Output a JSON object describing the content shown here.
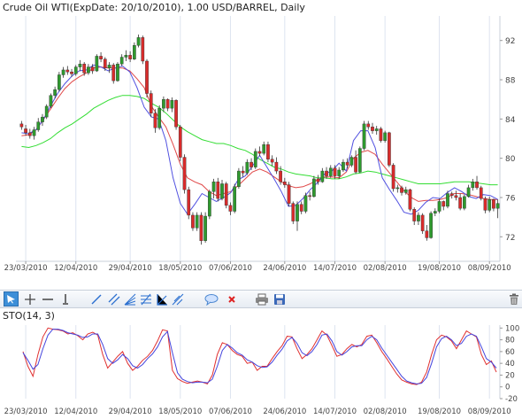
{
  "header": {
    "title": "Crude Oil WTI(ExpDate: 20/10/2010), 1.00 USD/BARREL, Daily"
  },
  "indicator": {
    "title": "STO(14, 3)"
  },
  "toolbar": {
    "tools": [
      "pointer-tool",
      "crosshair-tool",
      "horizontal-line-tool",
      "vertical-line-tool",
      "trend-line-tool",
      "parallel-channel-tool",
      "fibonacci-fan-tool",
      "fibonacci-retracement-tool",
      "gann-fan-tool",
      "pitchfork-tool",
      "comment-tool",
      "delete-tool",
      "print-tool",
      "save-tool",
      "clear-all-tool"
    ]
  },
  "colors": {
    "up": "#2e9a2e",
    "down": "#d92b2b",
    "ma_fast": "#5050e0",
    "ma_medium": "#e04848",
    "ma_slow": "#33dd33",
    "sto_k": "#e03030",
    "sto_d": "#4444dd",
    "grid": "#dde4f0"
  },
  "chart_data": [
    {
      "type": "candlestick",
      "title": "Crude Oil WTI(ExpDate: 20/10/2010), 1.00 USD/BARREL, Daily",
      "x_tick_labels": [
        "23/03/2010",
        "12/04/2010",
        "29/04/2010",
        "18/05/2010",
        "07/06/2010",
        "24/06/2010",
        "14/07/2010",
        "02/08/2010",
        "19/08/2010",
        "08/09/2010"
      ],
      "y_ticks": [
        72,
        76,
        80,
        84,
        88,
        92
      ],
      "ylim": [
        69.5,
        94.5
      ],
      "candles": [
        [
          83.5,
          83.8,
          82.9,
          83.2
        ],
        [
          83.0,
          83.4,
          82.3,
          82.6
        ],
        [
          82.6,
          83.0,
          82.0,
          82.3
        ],
        [
          82.3,
          83.2,
          81.9,
          82.9
        ],
        [
          82.9,
          84.1,
          82.7,
          83.7
        ],
        [
          83.7,
          84.5,
          83.3,
          84.2
        ],
        [
          84.2,
          85.5,
          84.0,
          85.3
        ],
        [
          85.3,
          86.6,
          85.1,
          86.4
        ],
        [
          86.4,
          87.3,
          86.1,
          87.0
        ],
        [
          87.0,
          88.8,
          86.8,
          88.5
        ],
        [
          88.5,
          89.3,
          88.2,
          89.0
        ],
        [
          89.0,
          89.4,
          88.5,
          88.8
        ],
        [
          88.8,
          89.1,
          88.3,
          88.6
        ],
        [
          88.6,
          89.5,
          88.4,
          89.3
        ],
        [
          89.3,
          90.0,
          88.9,
          89.6
        ],
        [
          89.6,
          89.8,
          88.4,
          88.7
        ],
        [
          88.7,
          89.6,
          88.5,
          89.3
        ],
        [
          89.3,
          89.6,
          88.6,
          88.9
        ],
        [
          88.9,
          90.6,
          88.8,
          90.4
        ],
        [
          90.4,
          90.8,
          89.8,
          90.1
        ],
        [
          90.1,
          90.3,
          88.9,
          89.2
        ],
        [
          89.2,
          89.8,
          88.7,
          89.5
        ],
        [
          89.5,
          89.7,
          87.6,
          87.9
        ],
        [
          87.9,
          89.8,
          87.8,
          89.6
        ],
        [
          89.6,
          90.6,
          89.4,
          90.3
        ],
        [
          90.3,
          91.0,
          89.9,
          90.5
        ],
        [
          90.5,
          90.9,
          89.8,
          90.1
        ],
        [
          90.1,
          91.8,
          90.0,
          91.5
        ],
        [
          91.5,
          92.6,
          91.3,
          92.3
        ],
        [
          92.3,
          92.5,
          89.6,
          89.9
        ],
        [
          89.9,
          90.1,
          86.2,
          86.6
        ],
        [
          86.6,
          86.9,
          84.2,
          84.6
        ],
        [
          84.6,
          85.0,
          82.6,
          83.1
        ],
        [
          83.1,
          85.4,
          82.9,
          85.1
        ],
        [
          85.1,
          86.3,
          84.7,
          86.0
        ],
        [
          86.0,
          86.1,
          84.8,
          85.1
        ],
        [
          85.1,
          86.2,
          84.7,
          85.9
        ],
        [
          85.9,
          86.0,
          82.9,
          83.2
        ],
        [
          83.2,
          83.4,
          79.7,
          80.1
        ],
        [
          80.1,
          80.4,
          76.4,
          76.8
        ],
        [
          76.8,
          77.1,
          73.8,
          74.2
        ],
        [
          74.2,
          74.5,
          72.6,
          72.9
        ],
        [
          72.9,
          74.5,
          72.6,
          74.2
        ],
        [
          74.2,
          74.5,
          71.2,
          71.6
        ],
        [
          71.6,
          74.5,
          71.4,
          74.1
        ],
        [
          74.1,
          76.8,
          73.8,
          76.6
        ],
        [
          76.6,
          77.9,
          75.9,
          77.6
        ],
        [
          77.6,
          78.0,
          75.6,
          75.9
        ],
        [
          75.9,
          77.8,
          75.7,
          77.4
        ],
        [
          77.4,
          77.6,
          74.9,
          75.2
        ],
        [
          75.2,
          75.5,
          74.2,
          74.6
        ],
        [
          74.6,
          77.4,
          74.4,
          77.1
        ],
        [
          77.1,
          79.0,
          76.9,
          78.7
        ],
        [
          78.7,
          79.2,
          78.1,
          78.5
        ],
        [
          78.5,
          79.9,
          78.3,
          79.6
        ],
        [
          79.6,
          80.0,
          78.8,
          79.1
        ],
        [
          79.1,
          81.0,
          78.9,
          80.7
        ],
        [
          80.7,
          81.2,
          80.2,
          80.5
        ],
        [
          80.5,
          81.7,
          80.3,
          81.4
        ],
        [
          81.4,
          81.7,
          79.6,
          79.9
        ],
        [
          79.9,
          80.3,
          79.2,
          79.6
        ],
        [
          79.6,
          80.1,
          78.4,
          78.7
        ],
        [
          78.7,
          79.2,
          77.3,
          77.6
        ],
        [
          77.6,
          78.0,
          77.0,
          77.3
        ],
        [
          77.3,
          77.6,
          75.1,
          75.4
        ],
        [
          75.4,
          75.6,
          73.3,
          73.6
        ],
        [
          73.6,
          75.6,
          72.6,
          75.3
        ],
        [
          75.3,
          75.6,
          74.3,
          74.6
        ],
        [
          74.6,
          76.5,
          74.4,
          76.2
        ],
        [
          76.2,
          76.6,
          75.7,
          76.1
        ],
        [
          76.1,
          78.2,
          76.0,
          77.9
        ],
        [
          77.9,
          78.3,
          77.3,
          77.6
        ],
        [
          77.6,
          79.0,
          77.5,
          78.7
        ],
        [
          78.7,
          79.1,
          77.9,
          78.2
        ],
        [
          78.2,
          79.3,
          78.0,
          79.0
        ],
        [
          79.0,
          79.3,
          77.9,
          78.2
        ],
        [
          78.2,
          79.1,
          77.9,
          78.8
        ],
        [
          78.8,
          79.9,
          78.6,
          79.6
        ],
        [
          79.6,
          80.0,
          79.0,
          79.3
        ],
        [
          79.3,
          80.3,
          79.1,
          80.1
        ],
        [
          80.1,
          80.8,
          78.4,
          78.6
        ],
        [
          78.6,
          81.2,
          78.5,
          81.0
        ],
        [
          81.0,
          83.8,
          80.8,
          83.5
        ],
        [
          83.5,
          83.8,
          82.9,
          83.2
        ],
        [
          83.2,
          83.6,
          82.5,
          82.8
        ],
        [
          82.8,
          83.3,
          82.4,
          83.0
        ],
        [
          83.0,
          83.2,
          81.6,
          81.8
        ],
        [
          81.8,
          82.8,
          81.6,
          82.6
        ],
        [
          82.6,
          82.7,
          79.1,
          79.3
        ],
        [
          79.3,
          79.5,
          76.6,
          76.9
        ],
        [
          76.9,
          77.3,
          76.5,
          77.0
        ],
        [
          77.0,
          77.2,
          76.2,
          76.5
        ],
        [
          76.5,
          77.1,
          76.3,
          76.8
        ],
        [
          76.8,
          76.9,
          74.6,
          74.8
        ],
        [
          74.8,
          75.0,
          73.2,
          73.6
        ],
        [
          73.6,
          74.5,
          73.2,
          74.2
        ],
        [
          74.2,
          74.4,
          72.3,
          72.6
        ],
        [
          72.6,
          73.2,
          71.6,
          71.9
        ],
        [
          71.9,
          74.6,
          71.8,
          74.4
        ],
        [
          74.4,
          74.9,
          74.1,
          74.6
        ],
        [
          74.6,
          75.9,
          74.4,
          75.6
        ],
        [
          75.6,
          75.7,
          74.7,
          75.1
        ],
        [
          75.1,
          76.7,
          74.9,
          76.4
        ],
        [
          76.4,
          76.6,
          75.9,
          76.2
        ],
        [
          76.2,
          76.7,
          75.7,
          76.0
        ],
        [
          76.0,
          76.4,
          74.7,
          74.9
        ],
        [
          74.9,
          76.3,
          74.7,
          76.1
        ],
        [
          76.1,
          77.3,
          76.0,
          77.0
        ],
        [
          77.0,
          77.9,
          76.7,
          77.6
        ],
        [
          77.6,
          78.2,
          76.8,
          77.0
        ],
        [
          77.0,
          77.2,
          75.7,
          75.9
        ],
        [
          75.9,
          76.1,
          74.4,
          74.7
        ],
        [
          74.7,
          76.1,
          74.5,
          75.8
        ],
        [
          75.8,
          75.9,
          74.6,
          74.9
        ],
        [
          74.9,
          75.8,
          73.9,
          75.4
        ]
      ],
      "moving_averages": {
        "fast": [
          82.6,
          82.5,
          82.9,
          83.9,
          85.3,
          86.6,
          87.6,
          88.4,
          88.9,
          89.0,
          89.5,
          89.3,
          88.9,
          89.2,
          89.4,
          88.8,
          87.2,
          85.2,
          84.2,
          84.0,
          81.8,
          78.0,
          75.4,
          74.3,
          75.3,
          76.4,
          76.0,
          75.6,
          76.0,
          76.5,
          77.8,
          78.2,
          79.2,
          80.3,
          79.1,
          77.9,
          76.6,
          75.1,
          75.2,
          75.9,
          76.8,
          77.5,
          78.4,
          78.7,
          79.5,
          78.7,
          81.8,
          82.8,
          82.8,
          81.1,
          78.0,
          76.8,
          75.7,
          74.5,
          74.3,
          74.7,
          75.5,
          76.0,
          75.9,
          76.5,
          77.0,
          76.6,
          76.1,
          75.9,
          76.3,
          76.2,
          75.8
        ],
        "medium": [
          82.3,
          82.4,
          82.9,
          83.9,
          85.0,
          86.1,
          87.1,
          87.8,
          88.3,
          88.7,
          89.2,
          89.3,
          89.2,
          89.2,
          89.2,
          88.9,
          88.1,
          87.2,
          85.3,
          84.2,
          83.2,
          81.4,
          79.4,
          78.0,
          77.6,
          77.3,
          76.6,
          76.2,
          76.4,
          76.6,
          77.2,
          77.9,
          78.6,
          78.9,
          78.6,
          78.1,
          77.6,
          77.2,
          77.0,
          77.1,
          77.4,
          77.8,
          78.1,
          78.1,
          78.0,
          78.6,
          80.0,
          80.6,
          80.8,
          80.4,
          79.4,
          78.5,
          77.6,
          76.7,
          76.0,
          75.6,
          75.7,
          75.7,
          75.8,
          76.0,
          76.4,
          76.4,
          76.3,
          76.1,
          75.9,
          75.8,
          75.8
        ],
        "slow": [
          81.2,
          81.1,
          81.3,
          81.6,
          82.0,
          82.6,
          83.1,
          83.5,
          84.0,
          84.5,
          85.1,
          85.5,
          85.9,
          86.2,
          86.4,
          86.4,
          86.3,
          86.1,
          85.6,
          85.2,
          84.6,
          83.9,
          83.2,
          82.7,
          82.3,
          81.9,
          81.7,
          81.5,
          81.5,
          81.3,
          81.0,
          80.8,
          80.4,
          79.9,
          79.5,
          79.1,
          78.9,
          78.6,
          78.4,
          78.3,
          78.2,
          78.0,
          78.0,
          77.9,
          77.9,
          78.1,
          78.4,
          78.5,
          78.7,
          78.6,
          78.4,
          78.2,
          78.0,
          77.8,
          77.6,
          77.4,
          77.4,
          77.4,
          77.4,
          77.5,
          77.6,
          77.6,
          77.6,
          77.5,
          77.4,
          77.3,
          77.3
        ]
      }
    },
    {
      "type": "line",
      "title": "STO(14, 3)",
      "x_tick_labels": [
        "23/03/2010",
        "12/04/2010",
        "29/04/2010",
        "18/05/2010",
        "07/06/2010",
        "24/06/2010",
        "14/07/2010",
        "02/08/2010",
        "19/08/2010",
        "08/09/2010"
      ],
      "y_ticks": [
        -20,
        0,
        20,
        40,
        60,
        80,
        100
      ],
      "ylim": [
        -20,
        105
      ],
      "series": [
        {
          "values": [
            60,
            35,
            18,
            55,
            85,
            100,
            98,
            97,
            95,
            90,
            92,
            87,
            80,
            90,
            93,
            88,
            55,
            32,
            42,
            52,
            60,
            40,
            28,
            35,
            45,
            52,
            62,
            78,
            97,
            95,
            28,
            14,
            9,
            6,
            8,
            10,
            8,
            5,
            20,
            55,
            75,
            72,
            62,
            55,
            52,
            40,
            42,
            28,
            35,
            35,
            48,
            60,
            70,
            86,
            85,
            65,
            48,
            55,
            65,
            80,
            95,
            88,
            70,
            52,
            55,
            65,
            72,
            68,
            72,
            86,
            88,
            75,
            60,
            48,
            35,
            22,
            12,
            8,
            5,
            4,
            8,
            25,
            55,
            80,
            88,
            85,
            78,
            65,
            80,
            95,
            90,
            85,
            55,
            38,
            44,
            25
          ]
        },
        {
          "values": [
            58,
            45,
            30,
            38,
            65,
            88,
            98,
            98,
            96,
            92,
            90,
            88,
            84,
            85,
            90,
            90,
            72,
            48,
            40,
            46,
            55,
            48,
            36,
            32,
            38,
            48,
            56,
            68,
            85,
            94,
            58,
            24,
            13,
            9,
            7,
            8,
            8,
            7,
            13,
            35,
            62,
            72,
            66,
            58,
            54,
            46,
            42,
            36,
            33,
            34,
            42,
            54,
            64,
            78,
            84,
            74,
            58,
            53,
            60,
            72,
            88,
            90,
            78,
            60,
            54,
            60,
            68,
            70,
            70,
            80,
            86,
            80,
            66,
            54,
            42,
            30,
            18,
            10,
            7,
            5,
            6,
            16,
            40,
            68,
            82,
            86,
            80,
            70,
            74,
            86,
            90,
            86,
            68,
            48,
            42,
            32
          ]
        }
      ]
    }
  ]
}
